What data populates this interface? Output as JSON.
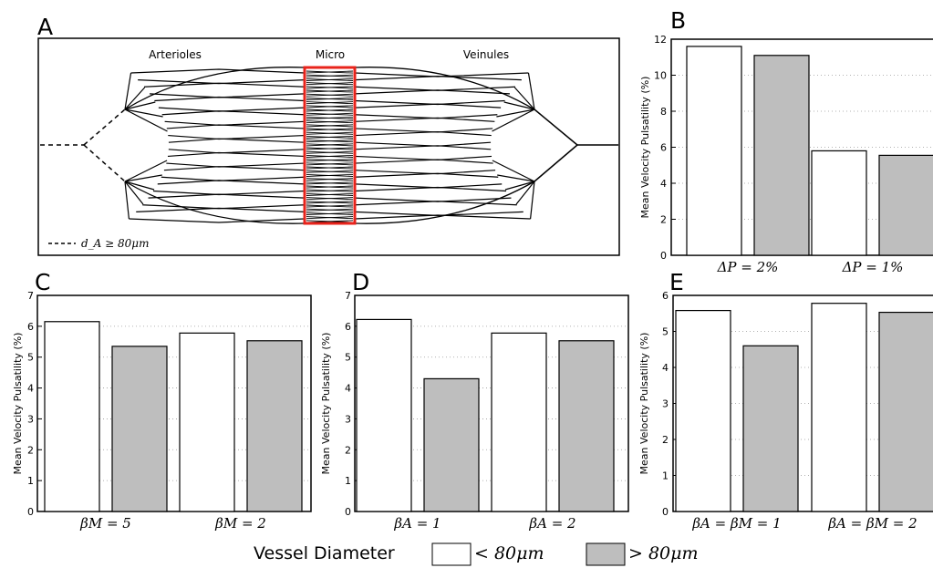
{
  "panels": {
    "A": {
      "letter": "A",
      "region_labels": {
        "arterioles": "Arterioles",
        "micro": "Micro",
        "veinules": "Veinules"
      },
      "legend_label": "d_A ≥ 80μm",
      "highlight_color": "#e8231b"
    },
    "B": {
      "letter": "B"
    },
    "C": {
      "letter": "C"
    },
    "D": {
      "letter": "D"
    },
    "E": {
      "letter": "E"
    }
  },
  "legend": {
    "title": "Vessel Diameter",
    "items": [
      {
        "label": "< 80μm",
        "color": "#ffffff"
      },
      {
        "label": "> 80μm",
        "color": "#bebebe"
      }
    ]
  },
  "chart_data": [
    {
      "panel": "B",
      "type": "bar",
      "categories": [
        "ΔP = 2%",
        "ΔP = 1%"
      ],
      "series": [
        {
          "name": "< 80μm",
          "values": [
            11.6,
            5.8
          ],
          "color": "#ffffff"
        },
        {
          "name": "> 80μm",
          "values": [
            11.1,
            5.55
          ],
          "color": "#bebebe"
        }
      ],
      "ylabel": "Mean Velocity Pulsatility (%)",
      "ylim": [
        0,
        12
      ],
      "yticks": [
        0,
        2,
        4,
        6,
        8,
        10,
        12
      ],
      "grid": "horizontal dotted"
    },
    {
      "panel": "C",
      "type": "bar",
      "categories": [
        "βM = 5",
        "βM = 2"
      ],
      "series": [
        {
          "name": "< 80μm",
          "values": [
            6.15,
            5.78
          ],
          "color": "#ffffff"
        },
        {
          "name": "> 80μm",
          "values": [
            5.35,
            5.53
          ],
          "color": "#bebebe"
        }
      ],
      "ylabel": "Mean Velocity Pulsatility (%)",
      "ylim": [
        0,
        7
      ],
      "yticks": [
        0,
        1,
        2,
        3,
        4,
        5,
        6,
        7
      ],
      "grid": "horizontal dotted"
    },
    {
      "panel": "D",
      "type": "bar",
      "categories": [
        "βA = 1",
        "βA = 2"
      ],
      "series": [
        {
          "name": "< 80μm",
          "values": [
            6.22,
            5.78
          ],
          "color": "#ffffff"
        },
        {
          "name": "> 80μm",
          "values": [
            4.3,
            5.53
          ],
          "color": "#bebebe"
        }
      ],
      "ylabel": "Mean Velocity Pulsatility (%)",
      "ylim": [
        0,
        7
      ],
      "yticks": [
        0,
        1,
        2,
        3,
        4,
        5,
        6,
        7
      ],
      "grid": "horizontal dotted"
    },
    {
      "panel": "E",
      "type": "bar",
      "categories": [
        "βA = βM = 1",
        "βA = βM = 2"
      ],
      "series": [
        {
          "name": "< 80μm",
          "values": [
            5.58,
            5.78
          ],
          "color": "#ffffff"
        },
        {
          "name": "> 80μm",
          "values": [
            4.6,
            5.53
          ],
          "color": "#bebebe"
        }
      ],
      "ylabel": "Mean Velocity Pulsatility (%)",
      "ylim": [
        0,
        6
      ],
      "yticks": [
        0,
        1,
        2,
        3,
        4,
        5,
        6
      ],
      "grid": "horizontal dotted"
    }
  ]
}
